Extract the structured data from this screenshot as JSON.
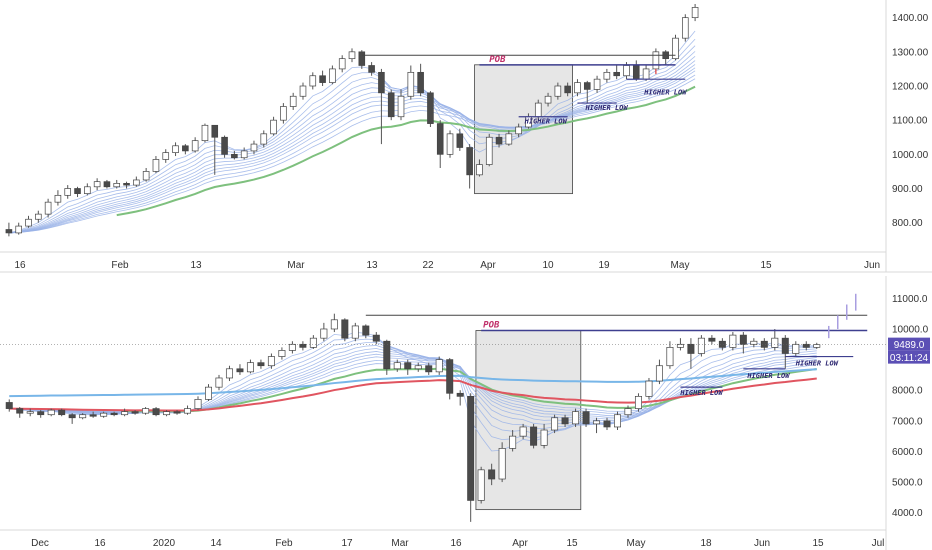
{
  "chart_data": [
    {
      "type": "candlestick",
      "title": "",
      "y_ticks": [
        800,
        900,
        1000,
        1100,
        1200,
        1300,
        1400
      ],
      "y_tick_labels": [
        "800.00",
        "900.00",
        "1000.00",
        "1100.00",
        "1200.00",
        "1300.00",
        "1400.00"
      ],
      "ylim": [
        720,
        1440
      ],
      "x_tick_labels": [
        "16",
        "Feb",
        "13",
        "Mar",
        "13",
        "22",
        "Apr",
        "10",
        "19",
        "May",
        "15",
        "Jun"
      ],
      "candles": [
        [
          780,
          770,
          800,
          760
        ],
        [
          770,
          790,
          800,
          765
        ],
        [
          790,
          810,
          820,
          785
        ],
        [
          810,
          825,
          835,
          800
        ],
        [
          825,
          860,
          870,
          815
        ],
        [
          860,
          880,
          895,
          850
        ],
        [
          880,
          900,
          910,
          870
        ],
        [
          900,
          885,
          905,
          875
        ],
        [
          885,
          905,
          915,
          880
        ],
        [
          905,
          920,
          930,
          895
        ],
        [
          920,
          905,
          925,
          900
        ],
        [
          905,
          915,
          925,
          900
        ],
        [
          915,
          910,
          920,
          900
        ],
        [
          910,
          925,
          935,
          905
        ],
        [
          925,
          950,
          960,
          920
        ],
        [
          950,
          985,
          995,
          945
        ],
        [
          985,
          1005,
          1015,
          975
        ],
        [
          1005,
          1025,
          1035,
          995
        ],
        [
          1025,
          1010,
          1030,
          1000
        ],
        [
          1010,
          1040,
          1050,
          1005
        ],
        [
          1040,
          1085,
          1090,
          1035
        ],
        [
          1085,
          1050,
          1085,
          940
        ],
        [
          1050,
          1000,
          1055,
          990
        ],
        [
          1000,
          990,
          1010,
          985
        ],
        [
          990,
          1010,
          1020,
          985
        ],
        [
          1010,
          1030,
          1040,
          1000
        ],
        [
          1030,
          1060,
          1070,
          1020
        ],
        [
          1060,
          1100,
          1110,
          1055
        ],
        [
          1100,
          1140,
          1150,
          1090
        ],
        [
          1140,
          1170,
          1180,
          1130
        ],
        [
          1170,
          1200,
          1210,
          1160
        ],
        [
          1200,
          1230,
          1240,
          1190
        ],
        [
          1230,
          1210,
          1245,
          1200
        ],
        [
          1210,
          1250,
          1260,
          1205
        ],
        [
          1250,
          1280,
          1290,
          1240
        ],
        [
          1280,
          1300,
          1310,
          1270
        ],
        [
          1300,
          1260,
          1305,
          1250
        ],
        [
          1260,
          1240,
          1270,
          1230
        ],
        [
          1240,
          1180,
          1250,
          1030
        ],
        [
          1180,
          1110,
          1190,
          1100
        ],
        [
          1110,
          1170,
          1190,
          1100
        ],
        [
          1170,
          1240,
          1260,
          1160
        ],
        [
          1240,
          1180,
          1265,
          1170
        ],
        [
          1180,
          1090,
          1185,
          1080
        ],
        [
          1090,
          1000,
          1100,
          960
        ],
        [
          1000,
          1060,
          1070,
          990
        ],
        [
          1060,
          1020,
          1075,
          1010
        ],
        [
          1020,
          940,
          1030,
          900
        ],
        [
          940,
          970,
          985,
          935
        ],
        [
          970,
          1050,
          1060,
          965
        ],
        [
          1050,
          1030,
          1060,
          1020
        ],
        [
          1030,
          1060,
          1070,
          1025
        ],
        [
          1060,
          1080,
          1090,
          1050
        ],
        [
          1080,
          1110,
          1120,
          1075
        ],
        [
          1110,
          1150,
          1160,
          1100
        ],
        [
          1150,
          1170,
          1180,
          1140
        ],
        [
          1170,
          1200,
          1210,
          1160
        ],
        [
          1200,
          1180,
          1210,
          1170
        ],
        [
          1180,
          1210,
          1220,
          1170
        ],
        [
          1210,
          1190,
          1215,
          1150
        ],
        [
          1190,
          1220,
          1230,
          1180
        ],
        [
          1220,
          1240,
          1250,
          1210
        ],
        [
          1240,
          1230,
          1260,
          1220
        ],
        [
          1230,
          1260,
          1270,
          1220
        ],
        [
          1260,
          1220,
          1275,
          1215
        ],
        [
          1220,
          1250,
          1260,
          1215
        ],
        [
          1250,
          1300,
          1310,
          1240
        ],
        [
          1300,
          1280,
          1305,
          1260
        ],
        [
          1280,
          1340,
          1350,
          1275
        ],
        [
          1340,
          1400,
          1410,
          1330
        ],
        [
          1400,
          1430,
          1440,
          1390
        ]
      ],
      "ema_ribbon_from": 12,
      "annotations": [
        "POB",
        "HIGHER LOW",
        "HIGHER LOW",
        "HIGHER LOW"
      ]
    },
    {
      "type": "candlestick",
      "title": "",
      "y_ticks": [
        4000,
        5000,
        6000,
        7000,
        8000,
        9000,
        10000,
        11000
      ],
      "y_tick_labels": [
        "4000.0",
        "5000.0",
        "6000.0",
        "7000.0",
        "8000.0",
        "9000.0",
        "10000.0",
        "11000.0"
      ],
      "ylim": [
        3500,
        11600
      ],
      "x_tick_labels": [
        "Dec",
        "16",
        "2020",
        "14",
        "Feb",
        "17",
        "Mar",
        "16",
        "Apr",
        "15",
        "May",
        "18",
        "Jun",
        "15",
        "Jul"
      ],
      "last_price_label": "9489.0",
      "countdown_label": "03:11:24",
      "candles": [
        [
          7600,
          7400,
          7700,
          7300
        ],
        [
          7400,
          7250,
          7450,
          7100
        ],
        [
          7250,
          7300,
          7400,
          7150
        ],
        [
          7300,
          7200,
          7350,
          7100
        ],
        [
          7200,
          7350,
          7400,
          7150
        ],
        [
          7350,
          7200,
          7400,
          7150
        ],
        [
          7200,
          7100,
          7250,
          6900
        ],
        [
          7100,
          7200,
          7250,
          7050
        ],
        [
          7200,
          7150,
          7300,
          7100
        ],
        [
          7150,
          7250,
          7300,
          7100
        ],
        [
          7250,
          7200,
          7300,
          7150
        ],
        [
          7200,
          7300,
          7400,
          7150
        ],
        [
          7300,
          7250,
          7350,
          7200
        ],
        [
          7250,
          7400,
          7450,
          7200
        ],
        [
          7400,
          7200,
          7450,
          7150
        ],
        [
          7200,
          7300,
          7350,
          7150
        ],
        [
          7300,
          7250,
          7350,
          7200
        ],
        [
          7250,
          7400,
          7500,
          7200
        ],
        [
          7400,
          7700,
          7800,
          7350
        ],
        [
          7700,
          8100,
          8200,
          7650
        ],
        [
          8100,
          8400,
          8500,
          8000
        ],
        [
          8400,
          8700,
          8800,
          8300
        ],
        [
          8700,
          8600,
          8850,
          8500
        ],
        [
          8600,
          8900,
          9000,
          8550
        ],
        [
          8900,
          8800,
          9000,
          8700
        ],
        [
          8800,
          9100,
          9200,
          8700
        ],
        [
          9100,
          9300,
          9400,
          9000
        ],
        [
          9300,
          9500,
          9600,
          9200
        ],
        [
          9500,
          9400,
          9600,
          9300
        ],
        [
          9400,
          9700,
          9800,
          9350
        ],
        [
          9700,
          10000,
          10200,
          9600
        ],
        [
          10000,
          10300,
          10500,
          9900
        ],
        [
          10300,
          9700,
          10350,
          9600
        ],
        [
          9700,
          10100,
          10200,
          9600
        ],
        [
          10100,
          9800,
          10150,
          9700
        ],
        [
          9800,
          9600,
          9900,
          9500
        ],
        [
          9600,
          8700,
          9650,
          8500
        ],
        [
          8700,
          8900,
          9000,
          8600
        ],
        [
          8900,
          8700,
          9000,
          8500
        ],
        [
          8700,
          8800,
          8900,
          8600
        ],
        [
          8800,
          8600,
          8900,
          8500
        ],
        [
          8600,
          9000,
          9100,
          8500
        ],
        [
          9000,
          7900,
          9050,
          7700
        ],
        [
          7900,
          7800,
          8000,
          7500
        ],
        [
          7800,
          4400,
          7900,
          3700
        ],
        [
          4400,
          5400,
          5500,
          4300
        ],
        [
          5400,
          5100,
          5600,
          4900
        ],
        [
          5100,
          6100,
          6300,
          5000
        ],
        [
          6100,
          6500,
          6700,
          6000
        ],
        [
          6500,
          6800,
          6900,
          6400
        ],
        [
          6800,
          6200,
          6900,
          6100
        ],
        [
          6200,
          6700,
          6900,
          6100
        ],
        [
          6700,
          7100,
          7200,
          6600
        ],
        [
          7100,
          6900,
          7200,
          6800
        ],
        [
          6900,
          7300,
          7400,
          6800
        ],
        [
          7300,
          6900,
          7400,
          6800
        ],
        [
          6900,
          7000,
          7100,
          6600
        ],
        [
          7000,
          6800,
          7100,
          6700
        ],
        [
          6800,
          7200,
          7300,
          6700
        ],
        [
          7200,
          7400,
          7500,
          7100
        ],
        [
          7400,
          7800,
          7900,
          7300
        ],
        [
          7800,
          8300,
          8400,
          7700
        ],
        [
          8300,
          8800,
          9000,
          8200
        ],
        [
          8800,
          9400,
          9600,
          8700
        ],
        [
          9400,
          9500,
          9700,
          9300
        ],
        [
          9500,
          9200,
          9700,
          8700
        ],
        [
          9200,
          9700,
          9800,
          9100
        ],
        [
          9700,
          9600,
          9800,
          9500
        ],
        [
          9600,
          9400,
          9700,
          9300
        ],
        [
          9400,
          9800,
          9900,
          9300
        ],
        [
          9800,
          9500,
          9900,
          9200
        ],
        [
          9500,
          9600,
          9700,
          9400
        ],
        [
          9600,
          9400,
          9700,
          9300
        ],
        [
          9400,
          9700,
          10000,
          9300
        ],
        [
          9700,
          9200,
          9800,
          8700
        ],
        [
          9200,
          9500,
          9600,
          9100
        ],
        [
          9500,
          9400,
          9600,
          9300
        ],
        [
          9400,
          9489,
          9550,
          9350
        ]
      ],
      "ema_ribbon_from": 7200,
      "annotations": [
        "POB",
        "HIGHER LOW",
        "HIGHER LOW",
        "HIGHER LOW"
      ]
    }
  ],
  "colors": {
    "up": "#ffffff",
    "down": "#4a4a4a",
    "wick": "#555555",
    "ribbon": "#9ab3e8",
    "green_ema": "#7ec07e",
    "red_ema": "#e05560",
    "blue_ema": "#78b6e8",
    "level_line": "#3e3f8f",
    "pob_box": "#e6e6e6",
    "price_tag": "#5b4fb5"
  }
}
